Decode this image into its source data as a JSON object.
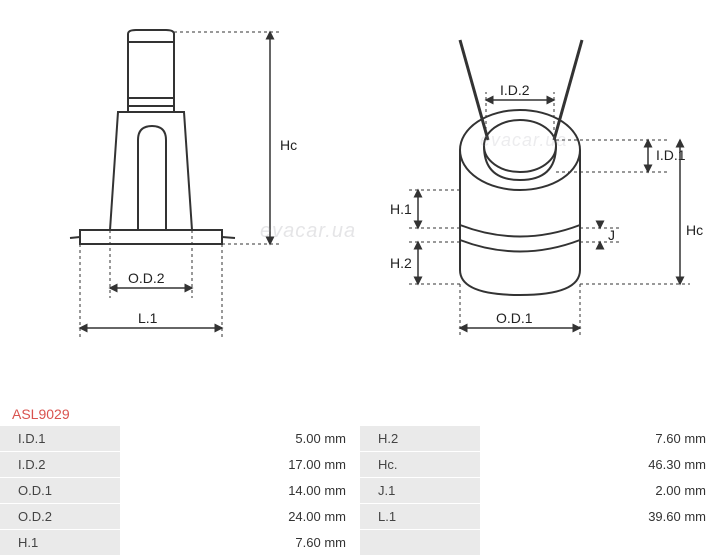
{
  "product_code": "ASL9029",
  "diagram": {
    "stroke_color": "#333333",
    "stroke_width": 2,
    "dash_pattern": "3,3",
    "background": "#ffffff",
    "label_fontsize": 14,
    "side_view": {
      "labels": {
        "hc": "Hc",
        "od2": "O.D.2",
        "l1": "L.1"
      }
    },
    "top_view": {
      "labels": {
        "id2": "I.D.2",
        "id1": "I.D.1",
        "h1": "H.1",
        "h2": "H.2",
        "j": "J",
        "hc": "Hc",
        "od1": "O.D.1"
      }
    }
  },
  "specs": {
    "rows": [
      {
        "label1": "I.D.1",
        "value1": "5.00 mm",
        "label2": "H.2",
        "value2": "7.60 mm"
      },
      {
        "label1": "I.D.2",
        "value1": "17.00 mm",
        "label2": "Hc.",
        "value2": "46.30 mm"
      },
      {
        "label1": "O.D.1",
        "value1": "14.00 mm",
        "label2": "J.1",
        "value2": "2.00 mm"
      },
      {
        "label1": "O.D.2",
        "value1": "24.00 mm",
        "label2": "L.1",
        "value2": "39.60 mm"
      },
      {
        "label1": "H.1",
        "value1": "7.60 mm",
        "label2": "",
        "value2": ""
      }
    ],
    "label_bg": "#eaeaea",
    "text_color": "#333333"
  }
}
